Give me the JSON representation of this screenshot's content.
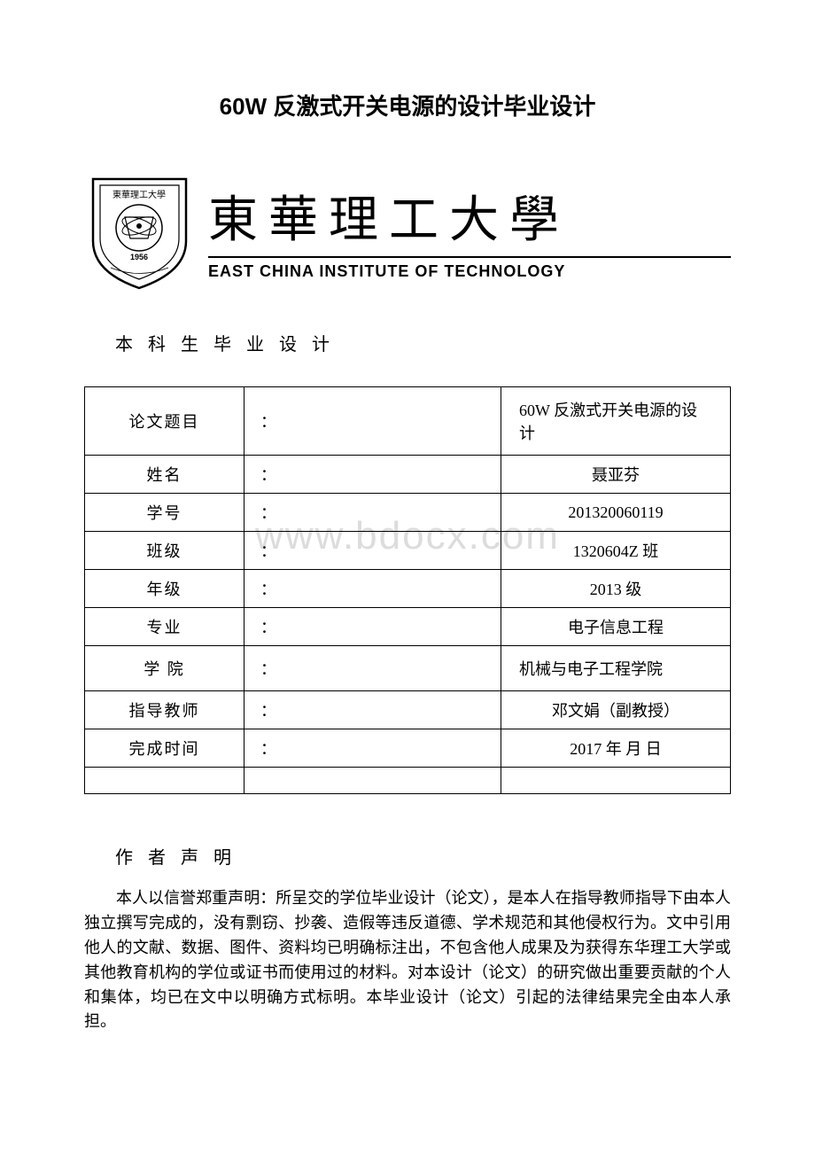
{
  "title": "60W 反激式开关电源的设计毕业设计",
  "university": {
    "chinese_calligraphy": "東華理工大學",
    "english": "EAST CHINA INSTITUTE OF TECHNOLOGY",
    "shield_year": "1956",
    "shield_text_top": "東華理工大學",
    "shield_arc_en": "EAST CHINA INSTITUTE OF TECHNOLOGY"
  },
  "doc_type": "本 科 生 毕 业 设 计",
  "info_table": {
    "rows": [
      {
        "label": "论文题目",
        "colon": "：",
        "value": "60W 反激式开关电源的设计",
        "align": "left",
        "tall": true
      },
      {
        "label": "姓名",
        "colon": "：",
        "value": "聂亚芬",
        "align": "center"
      },
      {
        "label": "学号",
        "colon": "：",
        "value": "201320060119",
        "align": "center"
      },
      {
        "label": "班级",
        "colon": "：",
        "value": "1320604Z 班",
        "align": "center"
      },
      {
        "label": "年级",
        "colon": "：",
        "value": "2013 级",
        "align": "center"
      },
      {
        "label": "专业",
        "colon": "：",
        "value": "电子信息工程",
        "align": "center"
      },
      {
        "label": "学 院",
        "colon": "：",
        "value": "机械与电子工程学院",
        "align": "left",
        "tall": true
      },
      {
        "label": "指导教师",
        "colon": "：",
        "value": "邓文娟（副教授）",
        "align": "center"
      },
      {
        "label": "完成时间",
        "colon": "：",
        "value": "2017 年 月 日",
        "align": "center"
      }
    ]
  },
  "declaration": {
    "title": "作 者 声 明",
    "body": "本人以信誉郑重声明：所呈交的学位毕业设计（论文），是本人在指导教师指导下由本人独立撰写完成的，没有剽窃、抄袭、造假等违反道德、学术规范和其他侵权行为。文中引用他人的文献、数据、图件、资料均已明确标注出，不包含他人成果及为获得东华理工大学或其他教育机构的学位或证书而使用过的材料。对本设计（论文）的研究做出重要贡献的个人和集体，均已在文中以明确方式标明。本毕业设计（论文）引起的法律结果完全由本人承担。"
  },
  "watermark": "www.bdocx.com",
  "colors": {
    "text": "#000000",
    "background": "#ffffff",
    "watermark": "#dcdcdc",
    "border": "#000000"
  },
  "typography": {
    "title_fontsize": 26,
    "body_fontsize": 18,
    "calligraphy_fontsize": 56,
    "english_fontsize": 18,
    "doctype_fontsize": 20
  }
}
